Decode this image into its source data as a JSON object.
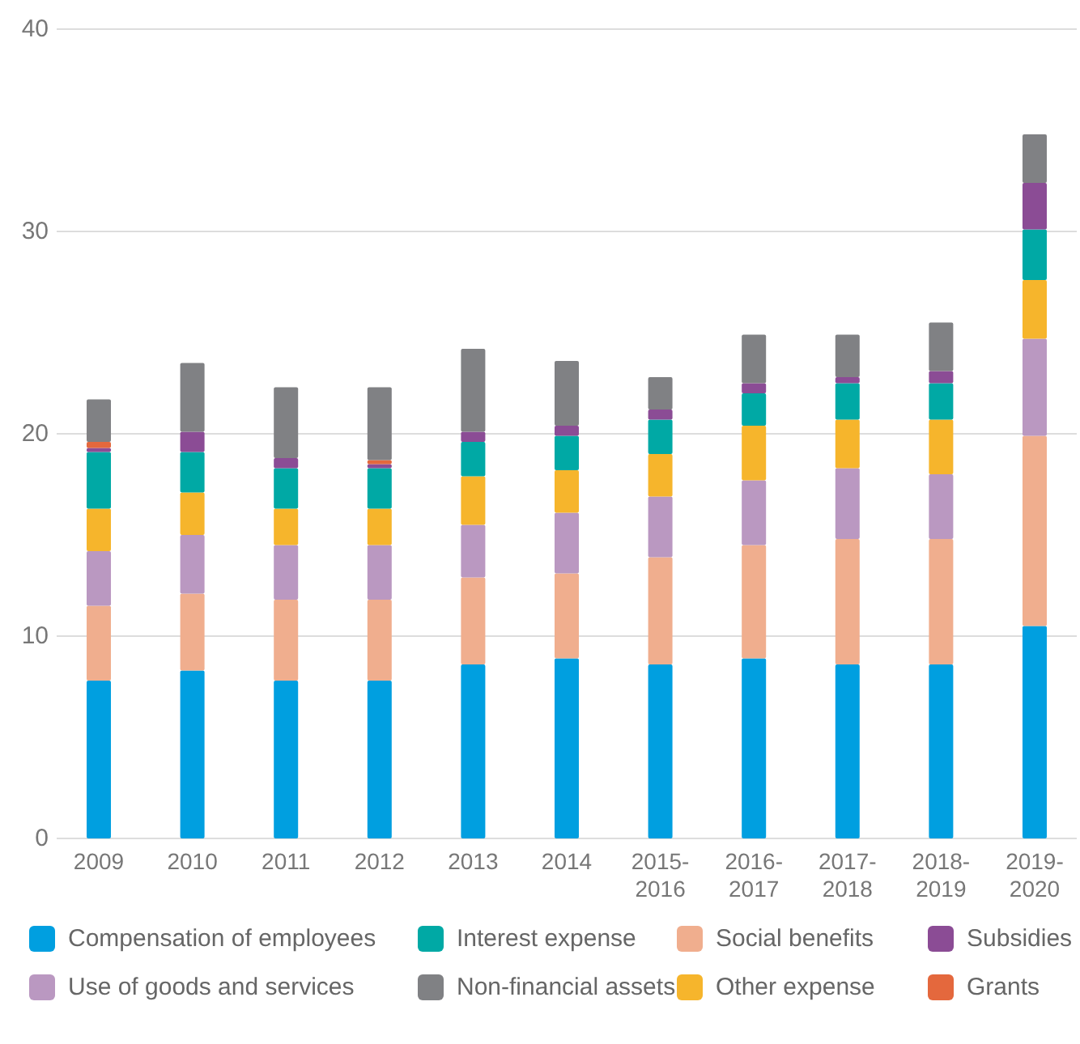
{
  "chart_data": {
    "type": "bar",
    "stacked": true,
    "categories": [
      "2009",
      "2010",
      "2011",
      "2012",
      "2013",
      "2014",
      "2015-2016",
      "2016-2017",
      "2017-2018",
      "2018-2019",
      "2019-2020"
    ],
    "ylim": [
      0,
      40
    ],
    "yticks": [
      0,
      10,
      20,
      30,
      40
    ],
    "grid": "y",
    "legend": "bottom",
    "series": [
      {
        "name": "Compensation of employees",
        "color": "#009fe0",
        "values": [
          7.8,
          8.3,
          7.8,
          7.8,
          8.6,
          8.9,
          8.6,
          8.9,
          8.6,
          8.6,
          10.5
        ]
      },
      {
        "name": "Social benefits",
        "color": "#f0ae8e",
        "values": [
          3.7,
          3.8,
          4.0,
          4.0,
          4.3,
          4.2,
          5.3,
          5.6,
          6.2,
          6.2,
          9.4
        ]
      },
      {
        "name": "Use of goods and services",
        "color": "#ba98c1",
        "values": [
          2.7,
          2.9,
          2.7,
          2.7,
          2.6,
          3.0,
          3.0,
          3.2,
          3.5,
          3.2,
          4.8
        ]
      },
      {
        "name": "Other expense",
        "color": "#f6b52c",
        "values": [
          2.1,
          2.1,
          1.8,
          1.8,
          2.4,
          2.1,
          2.1,
          2.7,
          2.4,
          2.7,
          2.9
        ]
      },
      {
        "name": "Interest expense",
        "color": "#00a9a5",
        "values": [
          2.8,
          2.0,
          2.0,
          2.0,
          1.7,
          1.7,
          1.7,
          1.6,
          1.8,
          1.8,
          2.5
        ]
      },
      {
        "name": "Subsidies",
        "color": "#8b4c95",
        "values": [
          0.2,
          1.0,
          0.5,
          0.2,
          0.5,
          0.5,
          0.5,
          0.5,
          0.3,
          0.6,
          2.3
        ]
      },
      {
        "name": "Grants",
        "color": "#e4683d",
        "values": [
          0.3,
          0,
          0,
          0.2,
          0,
          0,
          0,
          0,
          0,
          0,
          0
        ]
      },
      {
        "name": "Non-financial assets",
        "color": "#808184",
        "values": [
          2.1,
          3.4,
          3.5,
          3.6,
          4.1,
          3.2,
          1.6,
          2.4,
          2.1,
          2.4,
          2.4
        ]
      }
    ]
  }
}
